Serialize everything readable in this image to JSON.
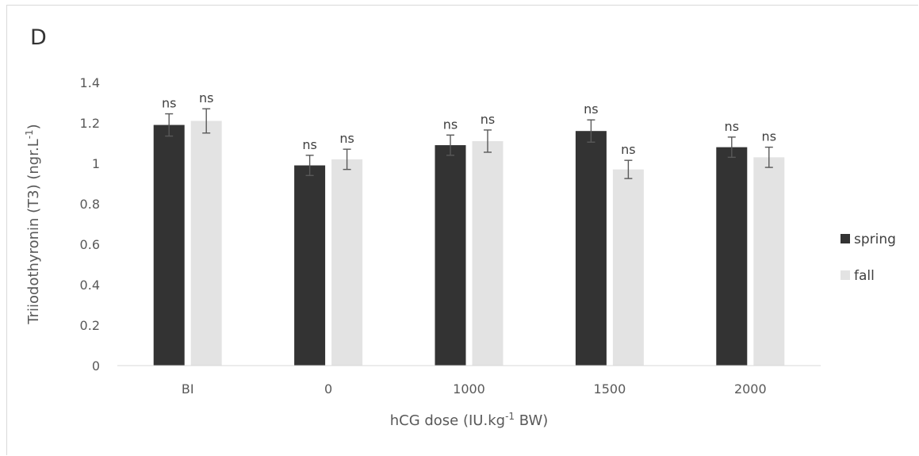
{
  "panel_label": "D",
  "chart_data": {
    "type": "bar",
    "categories": [
      "BI",
      "0",
      "1000",
      "1500",
      "2000"
    ],
    "series": [
      {
        "name": "spring",
        "color": "#333333",
        "values": [
          1.19,
          0.99,
          1.09,
          1.16,
          1.08
        ],
        "errors": [
          0.055,
          0.05,
          0.05,
          0.055,
          0.05
        ],
        "labels": [
          "ns",
          "ns",
          "ns",
          "ns",
          "ns"
        ]
      },
      {
        "name": "fall",
        "color": "#e3e3e3",
        "values": [
          1.21,
          1.02,
          1.11,
          0.97,
          1.03
        ],
        "errors": [
          0.06,
          0.05,
          0.055,
          0.045,
          0.05
        ],
        "labels": [
          "ns",
          "ns",
          "ns",
          "ns",
          "ns"
        ]
      }
    ],
    "ylim": [
      0,
      1.4
    ],
    "yticks": [
      "0",
      "0.2",
      "0.4",
      "0.6",
      "0.8",
      "1",
      "1.2",
      "1.4"
    ],
    "ylabel": {
      "main": "Triiodothyronin (T3)  (ngr.L",
      "sup": "-1",
      "end": ")"
    },
    "xlabel": {
      "main": "hCG dose (IU.kg",
      "sup": "-1",
      "end": " BW)"
    },
    "grid": false,
    "legend_position": "right"
  }
}
